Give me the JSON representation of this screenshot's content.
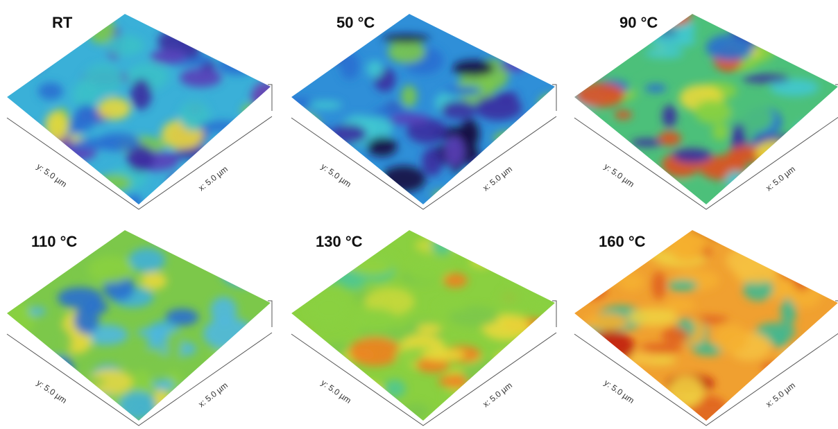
{
  "panels": [
    {
      "label": "RT",
      "y_axis": "y: 5.0 µm",
      "x_axis": "x: 5.0 µm"
    },
    {
      "label": "50 °C",
      "y_axis": "y: 5.0 µm",
      "x_axis": "x: 5.0 µm"
    },
    {
      "label": "90 °C",
      "y_axis": "y: 5.0 µm",
      "x_axis": "x: 5.0 µm"
    },
    {
      "label": "110 °C",
      "y_axis": "y: 5.0 µm",
      "x_axis": "x: 5.0 µm"
    },
    {
      "label": "130 °C",
      "y_axis": "y: 5.0 µm",
      "x_axis": "x: 5.0 µm"
    },
    {
      "label": "160 °C",
      "y_axis": "y: 5.0 µm",
      "x_axis": "x: 5.0 µm"
    }
  ]
}
